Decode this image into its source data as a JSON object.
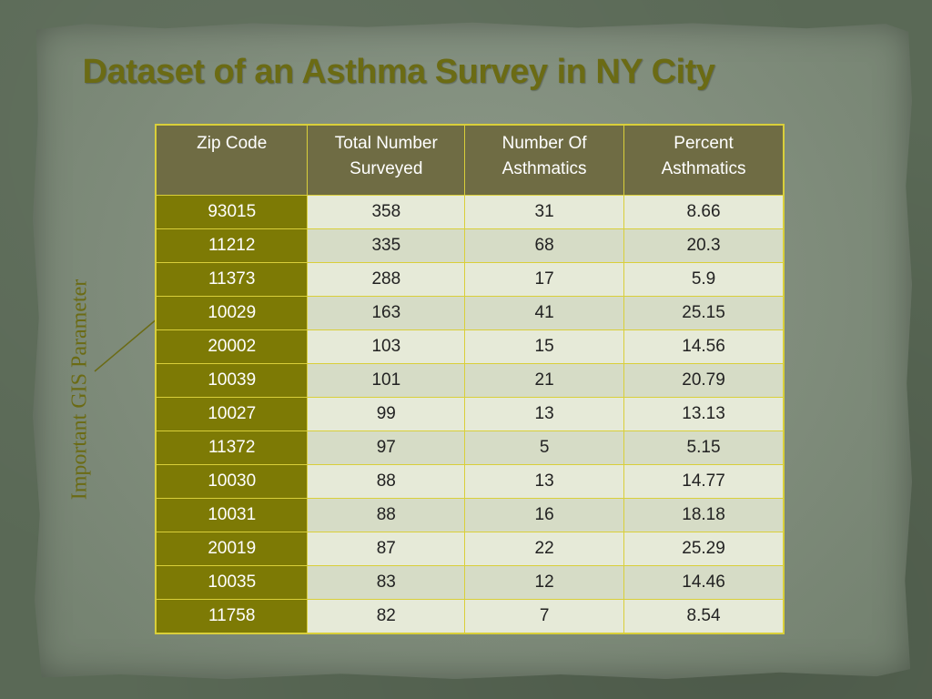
{
  "slide": {
    "title": "Dataset of an Asthma Survey in NY City",
    "side_label": "Important GIS Parameter"
  },
  "table": {
    "headers": [
      "Zip Code",
      "Total Number Surveyed",
      "Number Of Asthmatics",
      "Percent Asthmatics"
    ],
    "rows": [
      [
        "93015",
        "358",
        "31",
        "8.66"
      ],
      [
        "11212",
        "335",
        "68",
        "20.3"
      ],
      [
        "11373",
        "288",
        "17",
        "5.9"
      ],
      [
        "10029",
        "163",
        "41",
        "25.15"
      ],
      [
        "20002",
        "103",
        "15",
        "14.56"
      ],
      [
        "10039",
        "101",
        "21",
        "20.79"
      ],
      [
        "10027",
        "99",
        "13",
        "13.13"
      ],
      [
        "11372",
        "97",
        "5",
        "5.15"
      ],
      [
        "10030",
        "88",
        "13",
        "14.77"
      ],
      [
        "10031",
        "88",
        "16",
        "18.18"
      ],
      [
        "20019",
        "87",
        "22",
        "25.29"
      ],
      [
        "10035",
        "83",
        "12",
        "14.46"
      ],
      [
        "11758",
        "82",
        "7",
        "8.54"
      ]
    ]
  },
  "colors": {
    "title": "#6b6b14",
    "header_bg": "#6f6c44",
    "zip_bg": "#7d7a05",
    "cell_bg": "#e6ead8",
    "border": "#d9cf3a"
  }
}
